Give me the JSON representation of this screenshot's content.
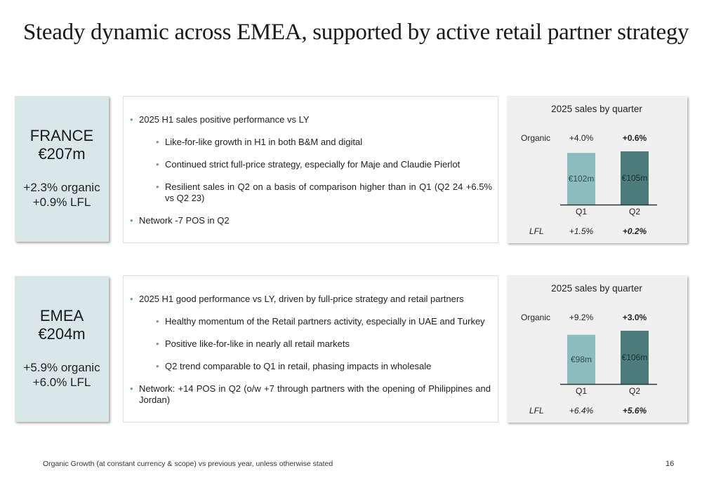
{
  "title": "Steady dynamic across EMEA, supported by active retail partner strategy",
  "footer": "Organic Growth (at constant currency & scope) vs previous year, unless otherwise stated",
  "page_number": "16",
  "colors": {
    "q1_bar": "#8cbcbc",
    "q2_bar": "#4b7b7a",
    "region_box": "#d9e7e8",
    "bullet_dot": "#6aa1a0"
  },
  "sections": [
    {
      "region": "FRANCE",
      "sales": "€207m",
      "organic": "+2.3% organic",
      "lfl": "+0.9% LFL",
      "bullets": [
        {
          "text": "2025 H1 sales positive performance vs LY",
          "level": 1
        },
        {
          "text": "Like-for-like growth in H1 in both B&M and digital",
          "level": 2
        },
        {
          "text": "Continued strict full-price strategy, especially for Maje and Claudie Pierlot",
          "level": 2
        },
        {
          "text": "Resilient sales in Q2 on a basis of comparison higher than in Q1 (Q2 24 +6.5% vs Q2 23)",
          "level": 2
        },
        {
          "text": "Network -7 POS in Q2",
          "level": 1
        }
      ]
    },
    {
      "region": "EMEA",
      "sales": "€204m",
      "organic": "+5.9% organic",
      "lfl": "+6.0% LFL",
      "bullets": [
        {
          "text": "2025 H1 good performance vs LY, driven by full-price strategy and retail partners",
          "level": 1
        },
        {
          "text": "Healthy momentum of the Retail partners activity, especially in UAE and Turkey",
          "level": 2
        },
        {
          "text": "Positive like-for-like in nearly all retail markets",
          "level": 2
        },
        {
          "text": "Q2 trend comparable to Q1 in retail, phasing impacts in wholesale",
          "level": 2
        },
        {
          "text": "Network: +14 POS in Q2 (o/w +7 through partners with the opening of Philippines and Jordan)",
          "level": 1
        }
      ]
    }
  ],
  "chart_data": [
    {
      "type": "bar",
      "title": "2025 sales by quarter",
      "categories": [
        "Q1",
        "Q2"
      ],
      "values": [
        102,
        105
      ],
      "value_labels": [
        "€102m",
        "€105m"
      ],
      "row_labels": {
        "organic": "Organic",
        "lfl": "LFL"
      },
      "organic": [
        "+4.0%",
        "+0.6%"
      ],
      "lfl": [
        "+1.5%",
        "+0.2%"
      ]
    },
    {
      "type": "bar",
      "title": "2025 sales by quarter",
      "categories": [
        "Q1",
        "Q2"
      ],
      "values": [
        98,
        106
      ],
      "value_labels": [
        "€98m",
        "€106m"
      ],
      "row_labels": {
        "organic": "Organic",
        "lfl": "LFL"
      },
      "organic": [
        "+9.2%",
        "+3.0%"
      ],
      "lfl": [
        "+6.4%",
        "+5.6%"
      ]
    }
  ]
}
